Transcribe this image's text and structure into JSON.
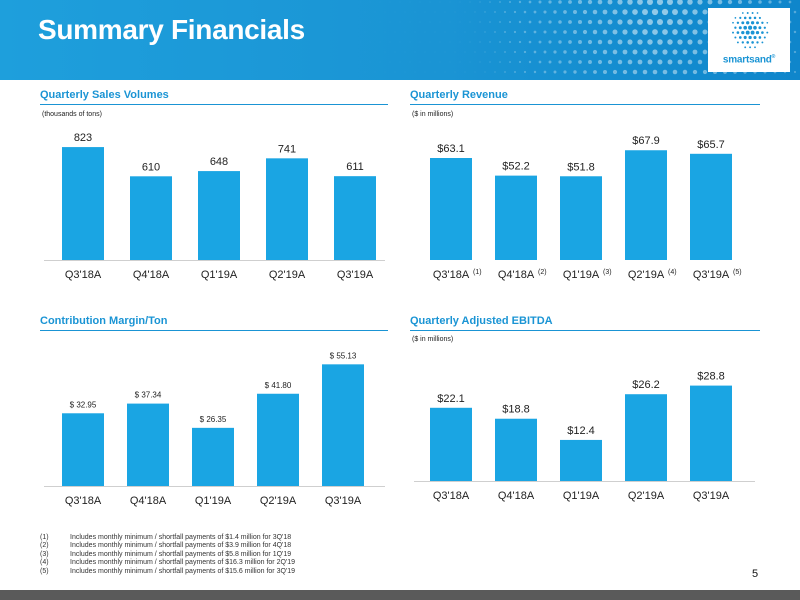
{
  "header": {
    "title": "Summary Financials"
  },
  "logo": {
    "text": "smartsand",
    "mark": "®"
  },
  "colors": {
    "bar": "#1aa5e3",
    "accent": "#1a94d4",
    "header": "#1e9fdc"
  },
  "panels": {
    "sales": {
      "title": "Quarterly Sales Volumes",
      "unit": "(thousands of tons)"
    },
    "revenue": {
      "title": "Quarterly Revenue",
      "unit": "($ in millions)"
    },
    "margin": {
      "title": "Contribution Margin/Ton",
      "unit": ""
    },
    "ebitda": {
      "title": "Quarterly Adjusted EBITDA",
      "unit": "($ in millions)"
    }
  },
  "chart_data": [
    {
      "type": "bar",
      "title": "Quarterly Sales Volumes",
      "unit": "(thousands of tons)",
      "categories": [
        "Q3'18A",
        "Q4'18A",
        "Q1'19A",
        "Q2'19A",
        "Q3'19A"
      ],
      "category_notes": [
        "",
        "",
        "",
        "",
        ""
      ],
      "values": [
        823,
        610,
        648,
        741,
        611
      ],
      "labels": [
        "823",
        "610",
        "648",
        "741",
        "611"
      ],
      "grid": false
    },
    {
      "type": "bar",
      "title": "Quarterly Revenue",
      "unit": "($ in millions)",
      "categories": [
        "Q3'18A",
        "Q4'18A",
        "Q1'19A",
        "Q2'19A",
        "Q3'19A"
      ],
      "category_notes": [
        "(1)",
        "(2)",
        "(3)",
        "(4)",
        "(5)"
      ],
      "values": [
        63.1,
        52.2,
        51.8,
        67.9,
        65.7
      ],
      "labels": [
        "$63.1",
        "$52.2",
        "$51.8",
        "$67.9",
        "$65.7"
      ],
      "grid": false
    },
    {
      "type": "bar",
      "title": "Contribution Margin/Ton",
      "categories": [
        "Q3'18A",
        "Q4'18A",
        "Q1'19A",
        "Q2'19A",
        "Q3'19A"
      ],
      "category_notes": [
        "",
        "",
        "",
        "",
        ""
      ],
      "values": [
        32.95,
        37.34,
        26.35,
        41.8,
        55.13
      ],
      "labels": [
        "$ 32.95",
        "$ 37.34",
        "$ 26.35",
        "$ 41.80",
        "$ 55.13"
      ],
      "grid": false
    },
    {
      "type": "bar",
      "title": "Quarterly Adjusted EBITDA",
      "unit": "($ in millions)",
      "categories": [
        "Q3'18A",
        "Q4'18A",
        "Q1'19A",
        "Q2'19A",
        "Q3'19A"
      ],
      "category_notes": [
        "",
        "",
        "",
        "",
        ""
      ],
      "values": [
        22.1,
        18.8,
        12.4,
        26.2,
        28.8
      ],
      "labels": [
        "$22.1",
        "$18.8",
        "$12.4",
        "$26.2",
        "$28.8"
      ],
      "grid": false
    }
  ],
  "footnotes": [
    {
      "num": "(1)",
      "text": "Includes monthly minimum / shortfall payments of $1.4 million for 3Q'18"
    },
    {
      "num": "(2)",
      "text": "Includes monthly minimum / shortfall payments of $3.9 million for 4Q'18"
    },
    {
      "num": "(3)",
      "text": "Includes monthly minimum / shortfall payments of $5.8 million for 1Q'19"
    },
    {
      "num": "(4)",
      "text": "Includes monthly minimum / shortfall payments of $16.3 million for 2Q'19"
    },
    {
      "num": "(5)",
      "text": "Includes monthly minimum / shortfall payments of $15.6 million for 3Q'19"
    }
  ],
  "page_number": "5"
}
